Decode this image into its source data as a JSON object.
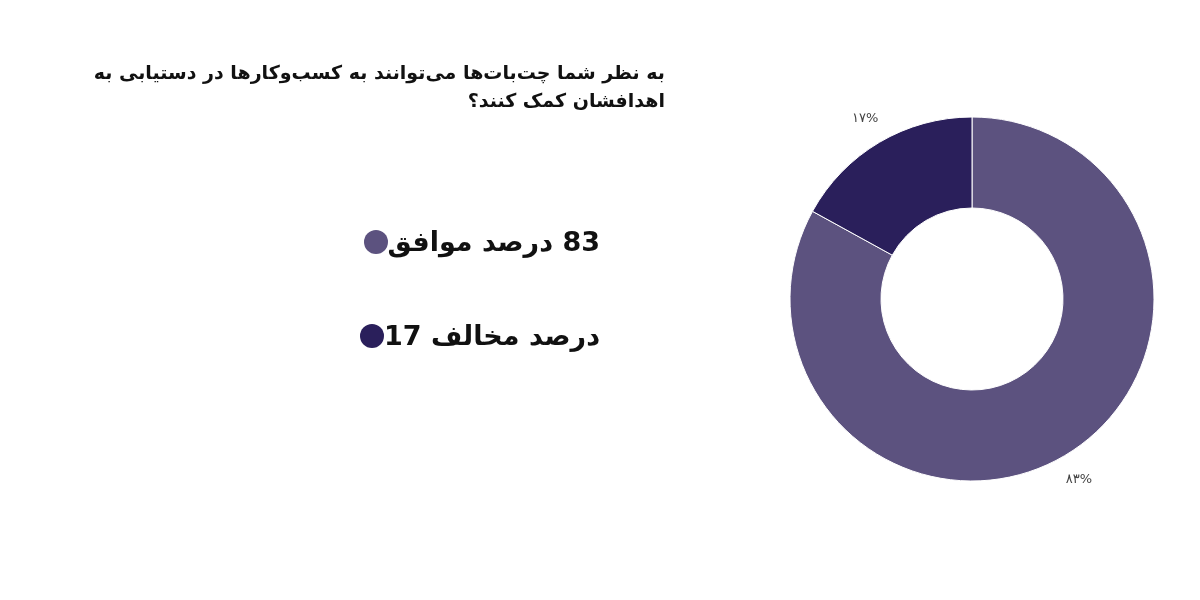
{
  "chart_data": {
    "type": "donut",
    "title": "به نظر شما چت‌بات‌ها می‌توانند به کسب‌وکارها در دستیابی به اهدافشان کمک کنند؟",
    "categories": [
      "83 درصد موافق",
      "درصد مخالف 17"
    ],
    "values": [
      83,
      17
    ],
    "colors": [
      "#5c527f",
      "#2a1f5b"
    ],
    "value_labels": [
      "۸۳%",
      "۱۷%"
    ],
    "legend": "left"
  }
}
